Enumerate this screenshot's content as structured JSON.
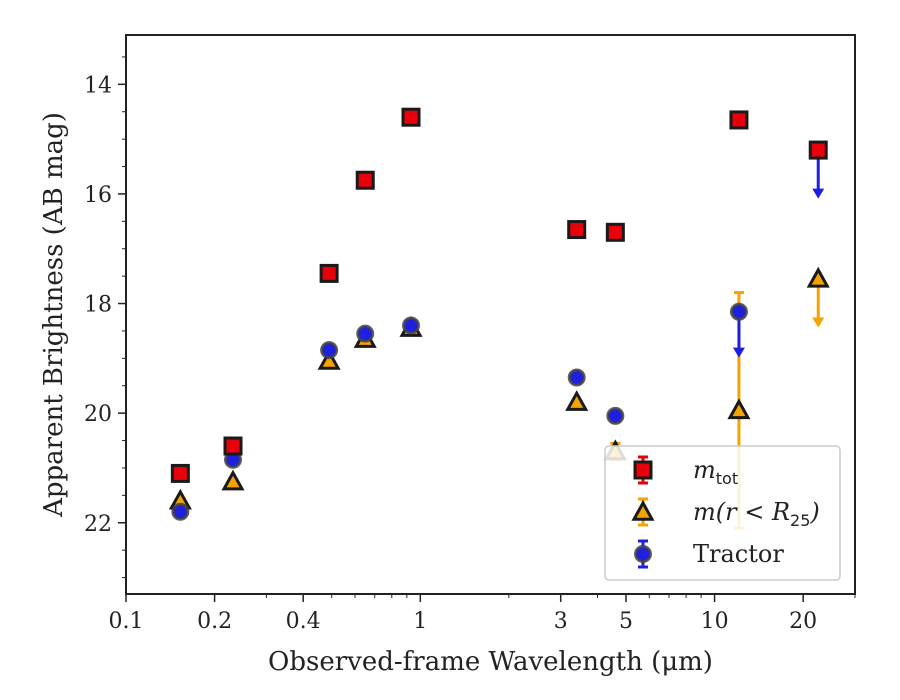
{
  "chart_data": {
    "type": "scatter",
    "xlabel": "Observed-frame Wavelength (μm)",
    "ylabel": "Apparent Brightness (AB mag)",
    "x_scale": "log",
    "xlim": [
      0.1,
      30
    ],
    "ylim": [
      23.3,
      13.1
    ],
    "y_inverted": true,
    "grid": false,
    "legend_position": "lower-right",
    "x_ticks": [
      {
        "value": 0.1,
        "label": "0.1"
      },
      {
        "value": 0.2,
        "label": "0.2"
      },
      {
        "value": 0.4,
        "label": "0.4"
      },
      {
        "value": 1,
        "label": "1"
      },
      {
        "value": 3,
        "label": "3"
      },
      {
        "value": 5,
        "label": "5"
      },
      {
        "value": 10,
        "label": "10"
      },
      {
        "value": 20,
        "label": "20"
      }
    ],
    "y_ticks": [
      {
        "value": 14,
        "label": "14"
      },
      {
        "value": 16,
        "label": "16"
      },
      {
        "value": 18,
        "label": "18"
      },
      {
        "value": 20,
        "label": "20"
      },
      {
        "value": 22,
        "label": "22"
      }
    ],
    "series": [
      {
        "name": "m_tot",
        "legend_main": "m",
        "legend_sub": "tot",
        "legend_rest": "",
        "marker": "square",
        "color": "#e8000b",
        "points": [
          {
            "x": 0.153,
            "y": 21.1
          },
          {
            "x": 0.231,
            "y": 20.6
          },
          {
            "x": 0.49,
            "y": 17.45
          },
          {
            "x": 0.65,
            "y": 15.75
          },
          {
            "x": 0.93,
            "y": 14.6
          },
          {
            "x": 3.4,
            "y": 16.65
          },
          {
            "x": 4.6,
            "y": 16.7,
            "err": 0.1
          },
          {
            "x": 12.1,
            "y": 14.65
          },
          {
            "x": 22.5,
            "y": 15.2
          }
        ]
      },
      {
        "name": "m(r < R25)",
        "legend_main": "m(r < R",
        "legend_sub": "25",
        "legend_rest": ")",
        "marker": "triangle",
        "color": "#f5a300",
        "points": [
          {
            "x": 0.153,
            "y": 21.6
          },
          {
            "x": 0.231,
            "y": 21.25
          },
          {
            "x": 0.49,
            "y": 19.05
          },
          {
            "x": 0.65,
            "y": 18.65
          },
          {
            "x": 0.93,
            "y": 18.45
          },
          {
            "x": 3.4,
            "y": 19.8
          },
          {
            "x": 4.6,
            "y": 20.7,
            "err": 0.15
          },
          {
            "x": 12.1,
            "y": 19.95,
            "err_low": 2.15,
            "err_high": 2.15
          },
          {
            "x": 22.5,
            "y": 17.55,
            "upper_limit_to": 18.4
          }
        ]
      },
      {
        "name": "Tractor",
        "legend_main": "Tractor",
        "legend_sub": "",
        "legend_rest": "",
        "marker": "circle",
        "color": "#1f1fe0",
        "points": [
          {
            "x": 0.153,
            "y": 21.8
          },
          {
            "x": 0.231,
            "y": 20.85
          },
          {
            "x": 0.49,
            "y": 18.85
          },
          {
            "x": 0.65,
            "y": 18.55
          },
          {
            "x": 0.93,
            "y": 18.4
          },
          {
            "x": 3.4,
            "y": 19.35
          },
          {
            "x": 4.6,
            "y": 20.05
          },
          {
            "x": 12.1,
            "y": 18.15,
            "upper_limit_to": 18.95
          },
          {
            "x": 22.5,
            "y": 15.2,
            "upper_limit_to": 16.05
          }
        ]
      }
    ]
  }
}
